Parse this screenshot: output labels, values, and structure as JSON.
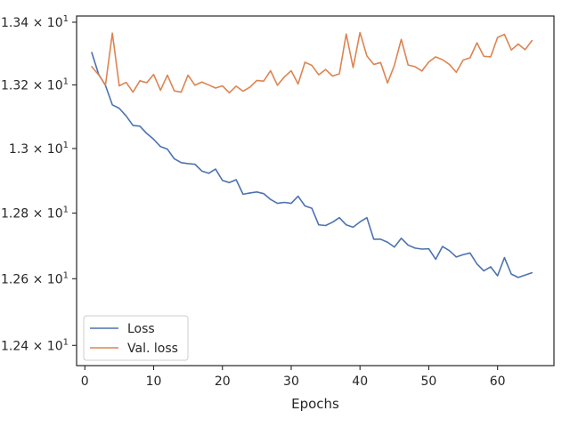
{
  "chart_data": {
    "type": "line",
    "title": "",
    "xlabel": "Epochs",
    "ylabel": "",
    "yscale": "log",
    "xlim": [
      -1.2,
      68.2
    ],
    "ylim": [
      12.34,
      13.42
    ],
    "xticks": [
      0,
      10,
      20,
      30,
      40,
      50,
      60
    ],
    "xtick_labels": [
      "0",
      "10",
      "20",
      "30",
      "40",
      "50",
      "60"
    ],
    "yticks": [
      12.4,
      12.6,
      12.8,
      13.0,
      13.2,
      13.4
    ],
    "ytick_labels": [
      {
        "mantissa": "1.24",
        "base": "10",
        "exp": "1"
      },
      {
        "mantissa": "1.26",
        "base": "10",
        "exp": "1"
      },
      {
        "mantissa": "1.28",
        "base": "10",
        "exp": "1"
      },
      {
        "mantissa": "1.3",
        "base": "10",
        "exp": "1"
      },
      {
        "mantissa": "1.32",
        "base": "10",
        "exp": "1"
      },
      {
        "mantissa": "1.34",
        "base": "10",
        "exp": "1"
      }
    ],
    "grid": false,
    "legend_position": "lower-left",
    "x": [
      1,
      2,
      3,
      4,
      5,
      6,
      7,
      8,
      9,
      10,
      11,
      12,
      13,
      14,
      15,
      16,
      17,
      18,
      19,
      20,
      21,
      22,
      23,
      24,
      25,
      26,
      27,
      28,
      29,
      30,
      31,
      32,
      33,
      34,
      35,
      36,
      37,
      38,
      39,
      40,
      41,
      42,
      43,
      44,
      45,
      46,
      47,
      48,
      49,
      50,
      51,
      52,
      53,
      54,
      55,
      56,
      57,
      58,
      59,
      60,
      61,
      62,
      63,
      64,
      65
    ],
    "series": [
      {
        "name": "Loss",
        "color": "#4c72b0",
        "values": [
          13.303,
          13.234,
          13.198,
          13.137,
          13.126,
          13.102,
          13.072,
          13.07,
          13.047,
          13.029,
          13.006,
          12.998,
          12.968,
          12.956,
          12.953,
          12.951,
          12.93,
          12.923,
          12.936,
          12.901,
          12.894,
          12.903,
          12.858,
          12.862,
          12.865,
          12.86,
          12.842,
          12.83,
          12.833,
          12.83,
          12.852,
          12.822,
          12.815,
          12.764,
          12.762,
          12.772,
          12.786,
          12.764,
          12.757,
          12.773,
          12.786,
          12.72,
          12.72,
          12.711,
          12.696,
          12.723,
          12.702,
          12.693,
          12.69,
          12.691,
          12.659,
          12.698,
          12.685,
          12.666,
          12.673,
          12.678,
          12.645,
          12.624,
          12.636,
          12.609,
          12.664,
          12.614,
          12.604,
          12.611,
          12.618
        ]
      },
      {
        "name": "Val. loss",
        "color": "#dd8452",
        "values": [
          13.258,
          13.232,
          13.2,
          13.365,
          13.197,
          13.208,
          13.177,
          13.213,
          13.207,
          13.233,
          13.183,
          13.231,
          13.181,
          13.177,
          13.231,
          13.199,
          13.209,
          13.2,
          13.19,
          13.197,
          13.175,
          13.196,
          13.18,
          13.193,
          13.214,
          13.212,
          13.245,
          13.199,
          13.225,
          13.245,
          13.203,
          13.272,
          13.262,
          13.232,
          13.249,
          13.228,
          13.235,
          13.362,
          13.255,
          13.367,
          13.292,
          13.265,
          13.271,
          13.206,
          13.262,
          13.345,
          13.263,
          13.258,
          13.244,
          13.273,
          13.289,
          13.28,
          13.265,
          13.24,
          13.279,
          13.286,
          13.334,
          13.291,
          13.289,
          13.351,
          13.361,
          13.311,
          13.33,
          13.312,
          13.341
        ]
      }
    ]
  }
}
